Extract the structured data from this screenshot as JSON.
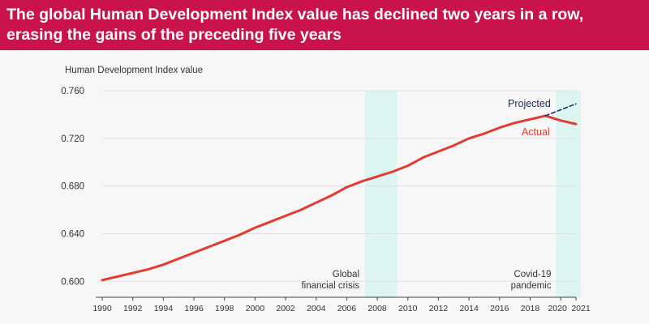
{
  "header": {
    "title": "The global Human Development Index value has declined two years in a row, erasing the gains of the preceding five years"
  },
  "colors": {
    "banner": "#c8144a",
    "actual_line": "#e03c31",
    "projected_line": "#1a2a5e",
    "shade": "#dcf5f1",
    "text": "#333333"
  },
  "chart_data": {
    "type": "line",
    "title": "",
    "ylabel": "Human Development Index value",
    "xlabel": "",
    "ylim": [
      0.59,
      0.76
    ],
    "xlim": [
      1990,
      2021
    ],
    "y_ticks": [
      "0.760",
      "0.720",
      "0.680",
      "0.640",
      "0.600"
    ],
    "y_tick_values": [
      0.76,
      0.72,
      0.68,
      0.64,
      0.6
    ],
    "x_ticks": [
      "1990",
      "1992",
      "1994",
      "1996",
      "1998",
      "2000",
      "2002",
      "2004",
      "2006",
      "2008",
      "2010",
      "2012",
      "2014",
      "2016",
      "2018",
      "2020",
      "2021"
    ],
    "x_tick_values": [
      1990,
      1992,
      1994,
      1996,
      1998,
      2000,
      2002,
      2004,
      2006,
      2008,
      2010,
      2012,
      2014,
      2016,
      2018,
      2020,
      2021
    ],
    "series": [
      {
        "name": "Actual",
        "style": "solid",
        "x": [
          1990,
          1991,
          1992,
          1993,
          1994,
          1995,
          1996,
          1997,
          1998,
          1999,
          2000,
          2001,
          2002,
          2003,
          2004,
          2005,
          2006,
          2007,
          2008,
          2009,
          2010,
          2011,
          2012,
          2013,
          2014,
          2015,
          2016,
          2017,
          2018,
          2019,
          2020,
          2021
        ],
        "values": [
          0.601,
          0.604,
          0.607,
          0.61,
          0.614,
          0.619,
          0.624,
          0.629,
          0.634,
          0.639,
          0.645,
          0.65,
          0.655,
          0.66,
          0.666,
          0.672,
          0.679,
          0.684,
          0.688,
          0.692,
          0.697,
          0.704,
          0.709,
          0.714,
          0.72,
          0.724,
          0.729,
          0.733,
          0.736,
          0.739,
          0.735,
          0.732
        ]
      },
      {
        "name": "Projected",
        "style": "dashed",
        "x": [
          2019,
          2021
        ],
        "values": [
          0.739,
          0.749
        ]
      }
    ],
    "shaded_periods": [
      {
        "label": "Global financial crisis",
        "label_lines": [
          "Global",
          "financial crisis"
        ],
        "start": 2007.2,
        "end": 2009.3
      },
      {
        "label": "Covid-19 pandemic",
        "label_lines": [
          "Covid-19",
          "pandemic"
        ],
        "start": 2019.7,
        "end": 2021.3
      }
    ]
  }
}
